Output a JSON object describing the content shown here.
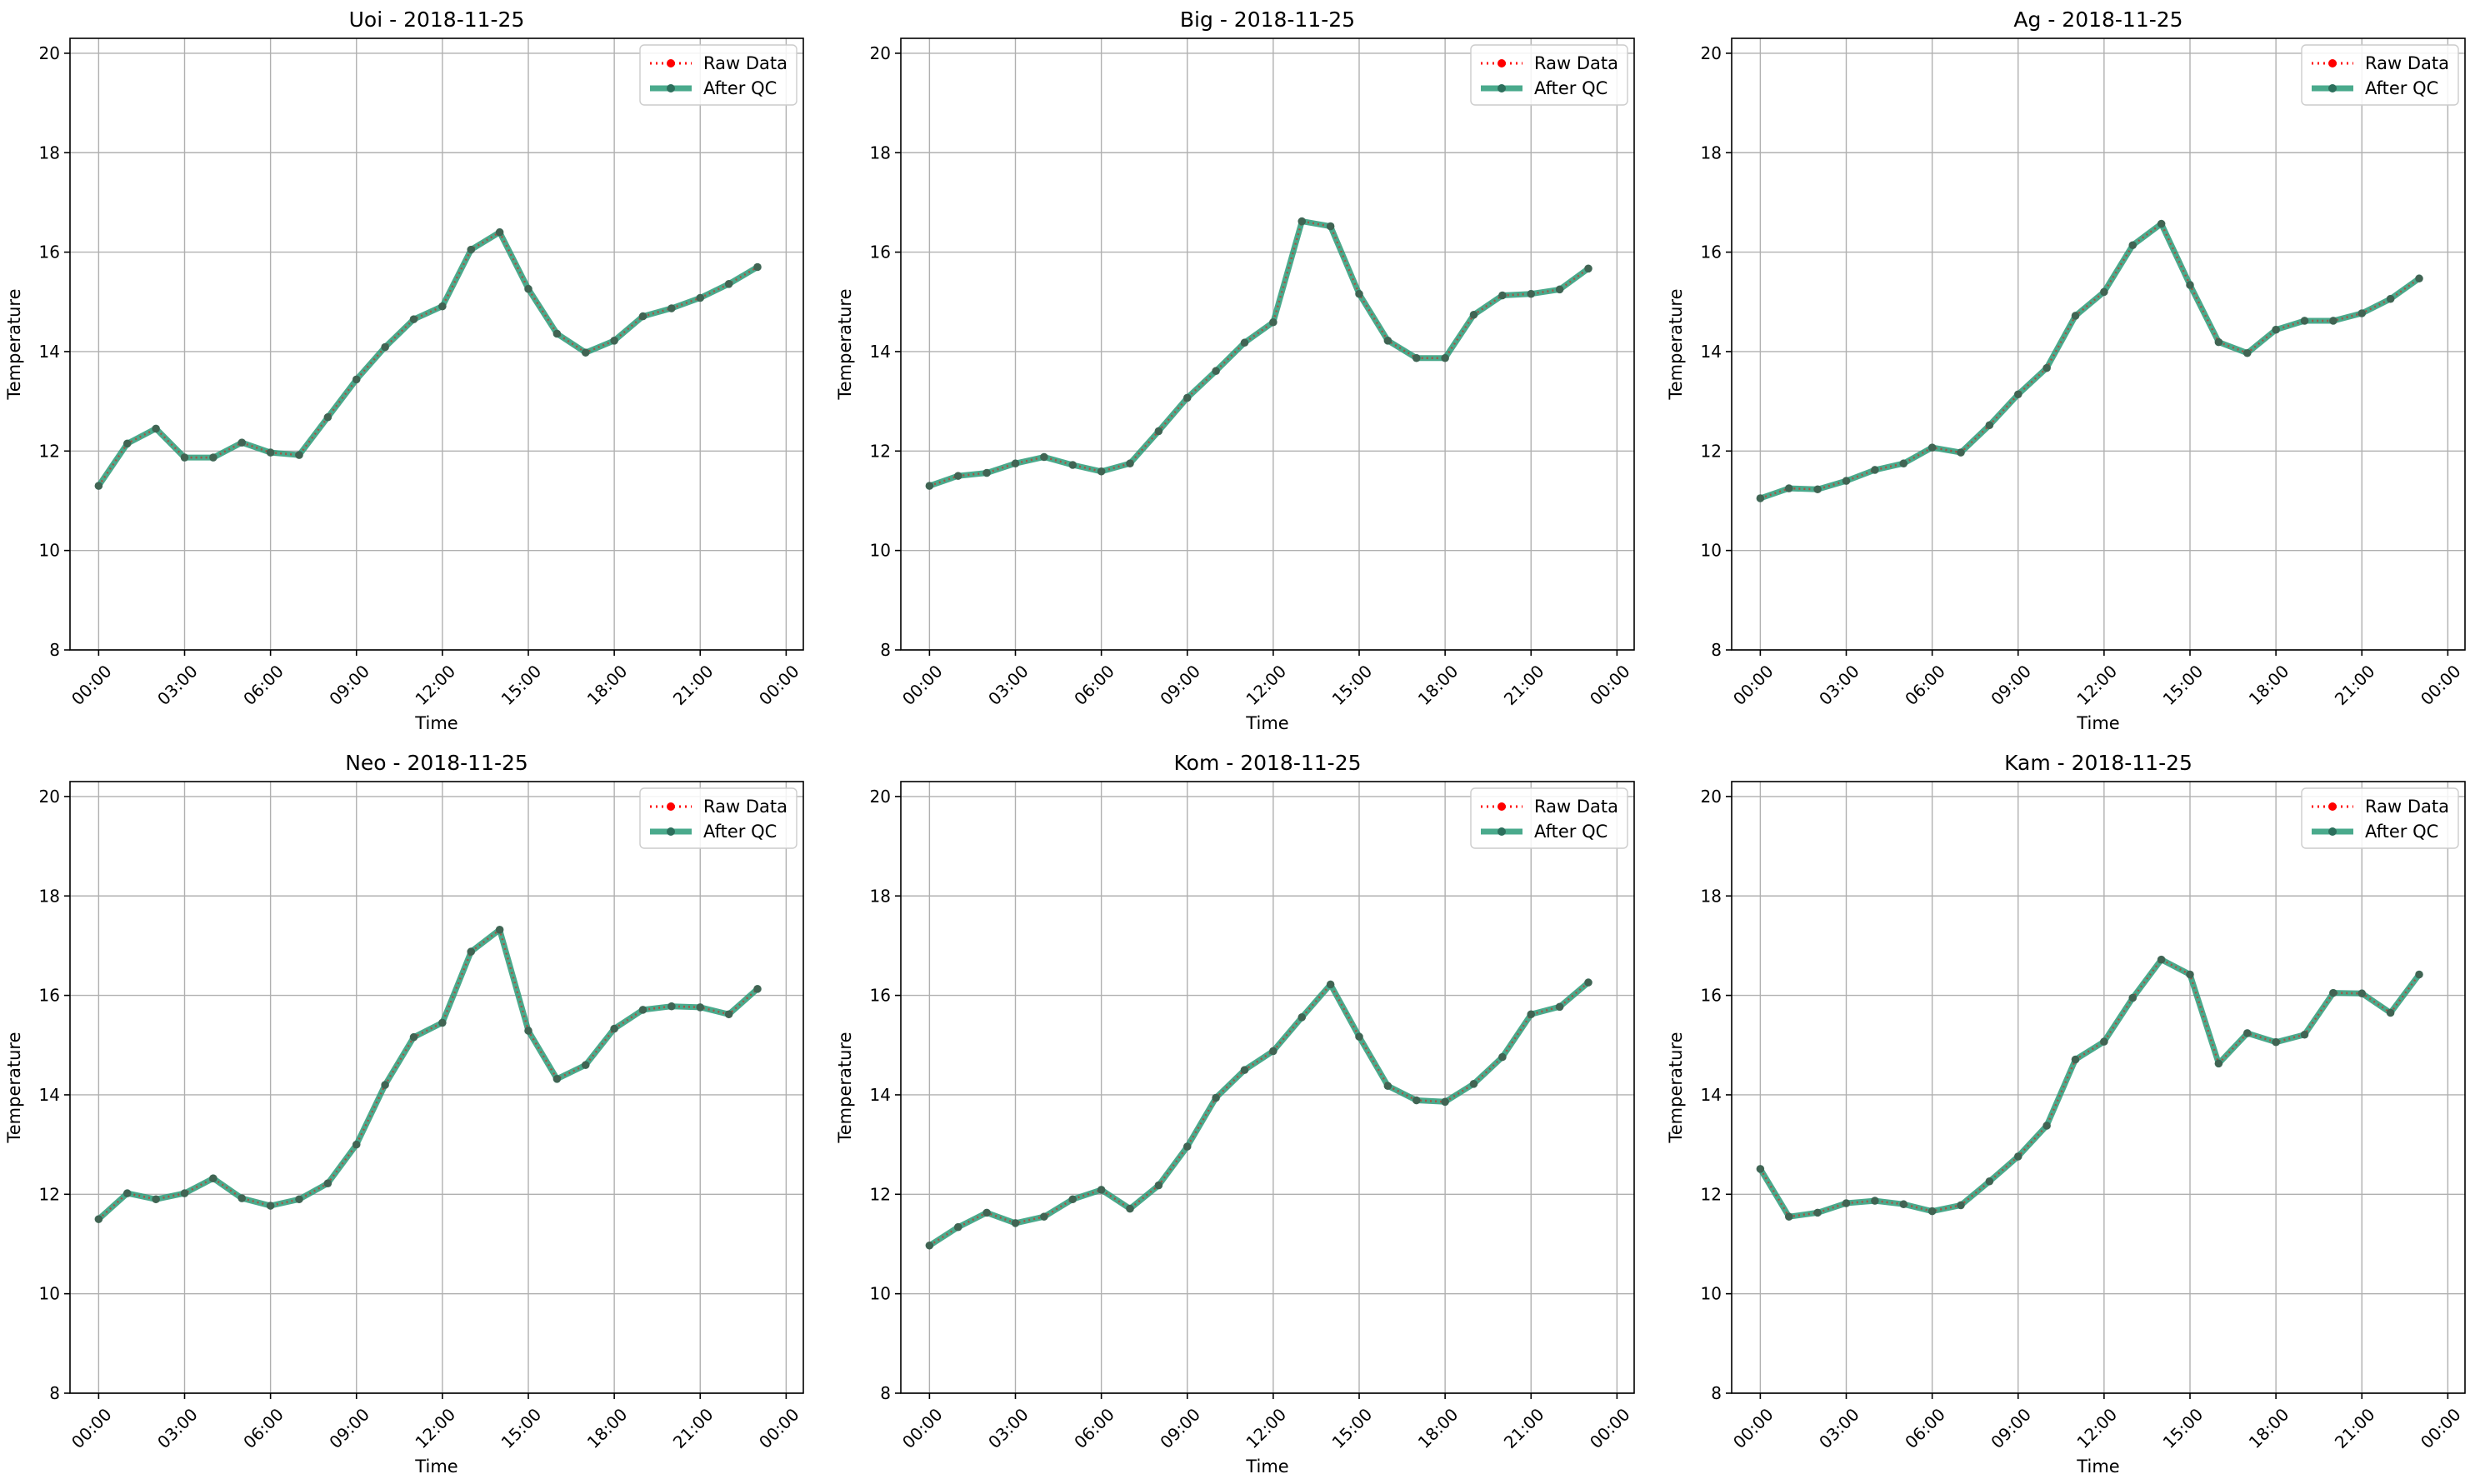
{
  "colors": {
    "raw": "#ff0000",
    "qc": "#2a9b78",
    "marker": "#2c6f5c",
    "grid": "#b0b0b0",
    "frame": "#000000",
    "legend_border": "#cccccc"
  },
  "chart_data": [
    {
      "type": "line",
      "title": "Uoi - 2018-11-25",
      "xlabel": "Time",
      "ylabel": "Temperature",
      "ylim": [
        8,
        20.3
      ],
      "yticks": [
        8,
        10,
        12,
        14,
        16,
        18,
        20
      ],
      "xlim": [
        -1,
        24.6
      ],
      "xtick_hours": [
        0,
        3,
        6,
        9,
        12,
        15,
        18,
        21,
        24
      ],
      "xtick_labels": [
        "00:00",
        "03:00",
        "06:00",
        "09:00",
        "12:00",
        "15:00",
        "18:00",
        "21:00",
        "00:00"
      ],
      "grid": true,
      "legend_position": "top-right",
      "series": [
        {
          "name": "Raw Data",
          "style": "dotted",
          "marker": "dot",
          "values": [
            11.3,
            12.15,
            12.45,
            11.87,
            11.87,
            12.17,
            11.97,
            11.92,
            12.68,
            13.44,
            14.09,
            14.65,
            14.91,
            16.05,
            16.4,
            15.26,
            14.36,
            13.98,
            14.22,
            14.71,
            14.87,
            15.08,
            15.36,
            15.7
          ]
        },
        {
          "name": "After QC",
          "style": "solid",
          "marker": "dot",
          "values": [
            11.3,
            12.15,
            12.45,
            11.87,
            11.87,
            12.17,
            11.97,
            11.92,
            12.68,
            13.44,
            14.09,
            14.65,
            14.91,
            16.05,
            16.4,
            15.26,
            14.36,
            13.98,
            14.22,
            14.71,
            14.87,
            15.08,
            15.36,
            15.7
          ]
        }
      ]
    },
    {
      "type": "line",
      "title": "Big - 2018-11-25",
      "xlabel": "Time",
      "ylabel": "Temperature",
      "ylim": [
        8,
        20.3
      ],
      "yticks": [
        8,
        10,
        12,
        14,
        16,
        18,
        20
      ],
      "xlim": [
        -1,
        24.6
      ],
      "xtick_hours": [
        0,
        3,
        6,
        9,
        12,
        15,
        18,
        21,
        24
      ],
      "xtick_labels": [
        "00:00",
        "03:00",
        "06:00",
        "09:00",
        "12:00",
        "15:00",
        "18:00",
        "21:00",
        "00:00"
      ],
      "grid": true,
      "legend_position": "top-right",
      "series": [
        {
          "name": "Raw Data",
          "style": "dotted",
          "marker": "dot",
          "values": [
            11.3,
            11.5,
            11.56,
            11.75,
            11.88,
            11.72,
            11.59,
            11.75,
            12.4,
            13.07,
            13.61,
            14.18,
            14.59,
            16.62,
            16.52,
            15.16,
            14.22,
            13.87,
            13.87,
            14.74,
            15.13,
            15.16,
            15.25,
            15.67
          ]
        },
        {
          "name": "After QC",
          "style": "solid",
          "marker": "dot",
          "values": [
            11.3,
            11.5,
            11.56,
            11.75,
            11.88,
            11.72,
            11.59,
            11.75,
            12.4,
            13.07,
            13.61,
            14.18,
            14.59,
            16.62,
            16.52,
            15.16,
            14.22,
            13.87,
            13.87,
            14.74,
            15.13,
            15.16,
            15.25,
            15.67
          ]
        }
      ]
    },
    {
      "type": "line",
      "title": "Ag - 2018-11-25",
      "xlabel": "Time",
      "ylabel": "Temperature",
      "ylim": [
        8,
        20.3
      ],
      "yticks": [
        8,
        10,
        12,
        14,
        16,
        18,
        20
      ],
      "xlim": [
        -1,
        24.6
      ],
      "xtick_hours": [
        0,
        3,
        6,
        9,
        12,
        15,
        18,
        21,
        24
      ],
      "xtick_labels": [
        "00:00",
        "03:00",
        "06:00",
        "09:00",
        "12:00",
        "15:00",
        "18:00",
        "21:00",
        "00:00"
      ],
      "grid": true,
      "legend_position": "top-right",
      "series": [
        {
          "name": "Raw Data",
          "style": "dotted",
          "marker": "dot",
          "values": [
            11.05,
            11.25,
            11.23,
            11.4,
            11.62,
            11.75,
            12.07,
            11.97,
            12.52,
            13.14,
            13.67,
            14.72,
            15.2,
            16.14,
            16.57,
            15.34,
            14.19,
            13.97,
            14.44,
            14.62,
            14.62,
            14.77,
            15.06,
            15.47
          ]
        },
        {
          "name": "After QC",
          "style": "solid",
          "marker": "dot",
          "values": [
            11.05,
            11.25,
            11.23,
            11.4,
            11.62,
            11.75,
            12.07,
            11.97,
            12.52,
            13.14,
            13.67,
            14.72,
            15.2,
            16.14,
            16.57,
            15.34,
            14.19,
            13.97,
            14.44,
            14.62,
            14.62,
            14.77,
            15.06,
            15.47
          ]
        }
      ]
    },
    {
      "type": "line",
      "title": "Neo - 2018-11-25",
      "xlabel": "Time",
      "ylabel": "Temperature",
      "ylim": [
        8,
        20.3
      ],
      "yticks": [
        8,
        10,
        12,
        14,
        16,
        18,
        20
      ],
      "xlim": [
        -1,
        24.6
      ],
      "xtick_hours": [
        0,
        3,
        6,
        9,
        12,
        15,
        18,
        21,
        24
      ],
      "xtick_labels": [
        "00:00",
        "03:00",
        "06:00",
        "09:00",
        "12:00",
        "15:00",
        "18:00",
        "21:00",
        "00:00"
      ],
      "grid": true,
      "legend_position": "top-right",
      "series": [
        {
          "name": "Raw Data",
          "style": "dotted",
          "marker": "dot",
          "values": [
            11.5,
            12.02,
            11.9,
            12.02,
            12.32,
            11.92,
            11.77,
            11.9,
            12.22,
            13.0,
            14.2,
            15.16,
            15.45,
            16.88,
            17.32,
            15.29,
            14.32,
            14.6,
            15.33,
            15.71,
            15.78,
            15.76,
            15.62,
            16.13
          ]
        },
        {
          "name": "After QC",
          "style": "solid",
          "marker": "dot",
          "values": [
            11.5,
            12.02,
            11.9,
            12.02,
            12.32,
            11.92,
            11.77,
            11.9,
            12.22,
            13.0,
            14.2,
            15.16,
            15.45,
            16.88,
            17.32,
            15.29,
            14.32,
            14.6,
            15.33,
            15.71,
            15.78,
            15.76,
            15.62,
            16.13
          ]
        }
      ]
    },
    {
      "type": "line",
      "title": "Kom - 2018-11-25",
      "xlabel": "Time",
      "ylabel": "Temperature",
      "ylim": [
        8,
        20.3
      ],
      "yticks": [
        8,
        10,
        12,
        14,
        16,
        18,
        20
      ],
      "xlim": [
        -1,
        24.6
      ],
      "xtick_hours": [
        0,
        3,
        6,
        9,
        12,
        15,
        18,
        21,
        24
      ],
      "xtick_labels": [
        "00:00",
        "03:00",
        "06:00",
        "09:00",
        "12:00",
        "15:00",
        "18:00",
        "21:00",
        "00:00"
      ],
      "grid": true,
      "legend_position": "top-right",
      "series": [
        {
          "name": "Raw Data",
          "style": "dotted",
          "marker": "dot",
          "values": [
            10.97,
            11.34,
            11.63,
            11.42,
            11.55,
            11.9,
            12.09,
            11.71,
            12.18,
            12.96,
            13.94,
            14.5,
            14.88,
            15.56,
            16.22,
            15.17,
            14.18,
            13.89,
            13.86,
            14.22,
            14.76,
            15.62,
            15.77,
            16.26
          ]
        },
        {
          "name": "After QC",
          "style": "solid",
          "marker": "dot",
          "values": [
            10.97,
            11.34,
            11.63,
            11.42,
            11.55,
            11.9,
            12.09,
            11.71,
            12.18,
            12.96,
            13.94,
            14.5,
            14.88,
            15.56,
            16.22,
            15.17,
            14.18,
            13.89,
            13.86,
            14.22,
            14.76,
            15.62,
            15.77,
            16.26
          ]
        }
      ]
    },
    {
      "type": "line",
      "title": "Kam - 2018-11-25",
      "xlabel": "Time",
      "ylabel": "Temperature",
      "ylim": [
        8,
        20.3
      ],
      "yticks": [
        8,
        10,
        12,
        14,
        16,
        18,
        20
      ],
      "xlim": [
        -1,
        24.6
      ],
      "xtick_hours": [
        0,
        3,
        6,
        9,
        12,
        15,
        18,
        21,
        24
      ],
      "xtick_labels": [
        "00:00",
        "03:00",
        "06:00",
        "09:00",
        "12:00",
        "15:00",
        "18:00",
        "21:00",
        "00:00"
      ],
      "grid": true,
      "legend_position": "top-right",
      "series": [
        {
          "name": "Raw Data",
          "style": "dotted",
          "marker": "dot",
          "values": [
            12.51,
            11.55,
            11.63,
            11.82,
            11.87,
            11.8,
            11.66,
            11.78,
            12.26,
            12.76,
            13.38,
            14.71,
            15.07,
            15.95,
            16.72,
            16.42,
            14.63,
            15.24,
            15.06,
            15.21,
            16.05,
            16.04,
            15.65,
            16.42
          ]
        },
        {
          "name": "After QC",
          "style": "solid",
          "marker": "dot",
          "values": [
            12.51,
            11.55,
            11.63,
            11.82,
            11.87,
            11.8,
            11.66,
            11.78,
            12.26,
            12.76,
            13.38,
            14.71,
            15.07,
            15.95,
            16.72,
            16.42,
            14.63,
            15.24,
            15.06,
            15.21,
            16.05,
            16.04,
            15.65,
            16.42
          ]
        }
      ]
    }
  ]
}
